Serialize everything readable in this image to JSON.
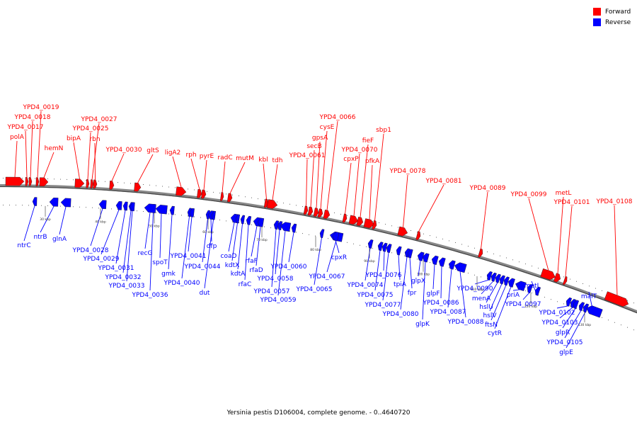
{
  "legend": {
    "forward_label": "Forward",
    "reverse_label": "Reverse",
    "forward_color": "#ff0000",
    "reverse_color": "#0000ff"
  },
  "caption": "Yersinia pestis D106004, complete genome. - 0..4640720",
  "track_color": "#888888",
  "ticks": [
    "30 kbp",
    "40 kbp",
    "50 kbp",
    "60 kbp",
    "70 kbp",
    "80 kbp",
    "90 kbp",
    "100 kbp",
    "110 kbp",
    "120 kbp",
    "130 kbp"
  ],
  "forward_genes": [
    "polA",
    "YPD4_0017",
    "YPD4_0018",
    "YPD4_0019",
    "hemN",
    "bipA",
    "YPD4_0025",
    "YPD4_0027",
    "rbn",
    "YPD4_0030",
    "gltS",
    "ligA2",
    "rph",
    "pyrE",
    "radC",
    "mutM",
    "kbl",
    "tdh",
    "YPD4_0061",
    "secB",
    "gpsA",
    "cysE",
    "YPD4_0066",
    "cpxP",
    "YPD4_0070",
    "fieF",
    "pfkA",
    "sbp1",
    "YPD4_0078",
    "YPD4_0081",
    "YPD4_0089",
    "YPD4_0099",
    "metL",
    "YPD4_0101",
    "YPD4_0108"
  ],
  "reverse_genes": [
    "ntrC",
    "ntrB",
    "glnA",
    "YPD4_0028",
    "YPD4_0029",
    "YPD4_0031",
    "YPD4_0032",
    "YPD4_0033",
    "YPD4_0036",
    "recG",
    "spoT",
    "gmk",
    "YPD4_0040",
    "YPD4_0041",
    "YPD4_0044",
    "dfp",
    "dut",
    "coaD",
    "kdtX",
    "kdtA",
    "rfaC",
    "rfaF",
    "rfaD",
    "YPD4_0058",
    "YPD4_0057",
    "YPD4_0059",
    "YPD4_0060",
    "YPD4_0067",
    "YPD4_0065",
    "cpxR",
    "YPD4_0074",
    "YPD4_0075",
    "YPD4_0076",
    "YPD4_0077",
    "tpiA",
    "YPD4_0080",
    "fpr",
    "glpX",
    "glpK",
    "glpF",
    "YPD4_0086",
    "YPD4_0087",
    "YPD4_0088",
    "YPD4_0090",
    "menA",
    "hslU",
    "hslV",
    "ftsN",
    "cytR",
    "priA",
    "YPD4_0097",
    "metJ",
    "YPD4_0102",
    "YPD4_0103",
    "glpR",
    "YPD4_0105",
    "glpE",
    "malT"
  ]
}
